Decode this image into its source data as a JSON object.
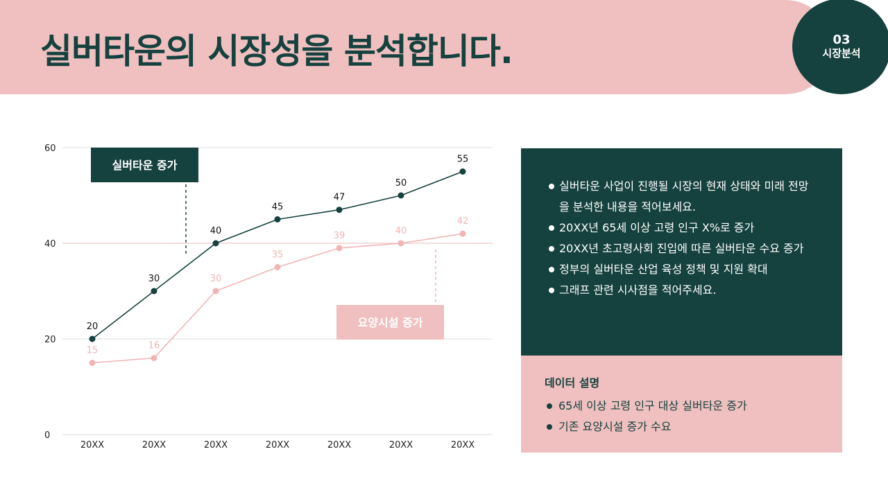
{
  "header": {
    "title": "실버타운의 시장성을 분석합니다.",
    "section_number": "03",
    "section_label": "시장분석"
  },
  "colors": {
    "dark": "#15423e",
    "pink": "#f0c0c0",
    "pink_line": "#efb5b5"
  },
  "chart_data": {
    "type": "line",
    "categories": [
      "20XX",
      "20XX",
      "20XX",
      "20XX",
      "20XX",
      "20XX",
      "20XX"
    ],
    "ylim": [
      0,
      60
    ],
    "yticks": [
      0,
      20,
      40,
      60
    ],
    "grid": true,
    "series": [
      {
        "name": "실버타운 증가",
        "values": [
          20,
          30,
          40,
          45,
          47,
          50,
          55
        ],
        "color": "#15423e"
      },
      {
        "name": "요양시설 증가",
        "values": [
          15,
          16,
          30,
          35,
          39,
          40,
          42
        ],
        "color": "#efb5b5"
      }
    ]
  },
  "info_panel": {
    "items": [
      "실버타운 사업이 진행될 시장의 현재 상태와 미래 전망을 분석한 내용을 적어보세요.",
      "20XX년 65세 이상 고령 인구 X%로 증가",
      "20XX년 초고령사회 진입에 따른 실버타운 수요 증가",
      "정부의 실버타운 산업 육성 정책 및 지원 확대",
      "그래프 관련 시사점을 적어주세요."
    ]
  },
  "data_panel": {
    "title": "데이터 설명",
    "items": [
      "65세 이상 고령 인구 대상 실버타운 증가",
      "기존 요양시설 증가 수요"
    ]
  }
}
